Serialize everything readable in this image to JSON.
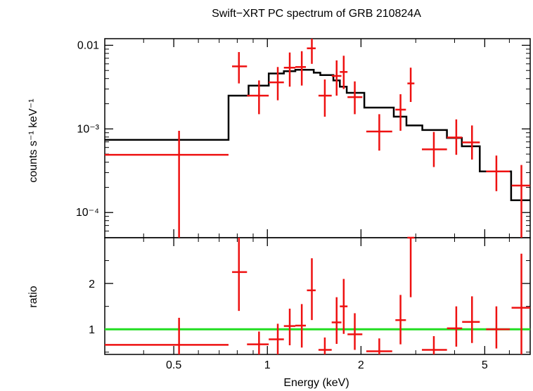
{
  "title": "Swift−XRT PC spectrum of GRB 210824A",
  "chart_data": [
    {
      "type": "scatter",
      "panel": "spectrum",
      "ylabel": "counts s⁻¹ keV⁻¹",
      "xscale": "log",
      "yscale": "log",
      "xlim": [
        0.3,
        7.0
      ],
      "ylim": [
        5e-05,
        0.012
      ],
      "yticks": [
        {
          "value": 0.01,
          "label": "0.01"
        },
        {
          "value": 0.001,
          "label": "10⁻³"
        },
        {
          "value": 0.0001,
          "label": "10⁻⁴"
        }
      ],
      "series": [
        {
          "role": "data",
          "color": "#ee1111",
          "points": [
            {
              "x": 0.52,
              "xlo": 0.3,
              "xhi": 0.75,
              "y": 0.00049,
              "ylo": 5e-05,
              "yhi": 0.00095
            },
            {
              "x": 0.81,
              "xlo": 0.77,
              "xhi": 0.86,
              "y": 0.0056,
              "ylo": 0.0035,
              "yhi": 0.0083
            },
            {
              "x": 0.94,
              "xlo": 0.86,
              "xhi": 1.01,
              "y": 0.0025,
              "ylo": 0.0015,
              "yhi": 0.0038
            },
            {
              "x": 1.08,
              "xlo": 1.01,
              "xhi": 1.13,
              "y": 0.0036,
              "ylo": 0.0022,
              "yhi": 0.0055
            },
            {
              "x": 1.18,
              "xlo": 1.13,
              "xhi": 1.23,
              "y": 0.0054,
              "ylo": 0.0032,
              "yhi": 0.0082
            },
            {
              "x": 1.29,
              "xlo": 1.23,
              "xhi": 1.33,
              "y": 0.0055,
              "ylo": 0.0033,
              "yhi": 0.0085
            },
            {
              "x": 1.39,
              "xlo": 1.34,
              "xhi": 1.43,
              "y": 0.0092,
              "ylo": 0.006,
              "yhi": 0.014
            },
            {
              "x": 1.53,
              "xlo": 1.46,
              "xhi": 1.61,
              "y": 0.0025,
              "ylo": 0.0014,
              "yhi": 0.0039
            },
            {
              "x": 1.67,
              "xlo": 1.61,
              "xhi": 1.73,
              "y": 0.0043,
              "ylo": 0.0025,
              "yhi": 0.0066
            },
            {
              "x": 1.76,
              "xlo": 1.71,
              "xhi": 1.81,
              "y": 0.0048,
              "ylo": 0.003,
              "yhi": 0.0075
            },
            {
              "x": 1.91,
              "xlo": 1.81,
              "xhi": 2.02,
              "y": 0.0024,
              "ylo": 0.0015,
              "yhi": 0.0037
            },
            {
              "x": 2.29,
              "xlo": 2.08,
              "xhi": 2.52,
              "y": 0.00093,
              "ylo": 0.00055,
              "yhi": 0.0015
            },
            {
              "x": 2.68,
              "xlo": 2.58,
              "xhi": 2.79,
              "y": 0.0017,
              "ylo": 0.00095,
              "yhi": 0.0026
            },
            {
              "x": 2.89,
              "xlo": 2.82,
              "xhi": 2.97,
              "y": 0.0035,
              "ylo": 0.0021,
              "yhi": 0.0054
            },
            {
              "x": 3.43,
              "xlo": 3.14,
              "xhi": 3.78,
              "y": 0.00057,
              "ylo": 0.00035,
              "yhi": 0.00092
            },
            {
              "x": 4.05,
              "xlo": 3.78,
              "xhi": 4.23,
              "y": 0.00079,
              "ylo": 0.00049,
              "yhi": 0.0013
            },
            {
              "x": 4.55,
              "xlo": 4.23,
              "xhi": 4.82,
              "y": 0.00069,
              "ylo": 0.00043,
              "yhi": 0.0011
            },
            {
              "x": 5.45,
              "xlo": 5.05,
              "xhi": 6.02,
              "y": 0.00031,
              "ylo": 0.00018,
              "yhi": 0.00048
            },
            {
              "x": 6.56,
              "xlo": 6.1,
              "xhi": 7.0,
              "y": 0.00021,
              "ylo": 5e-05,
              "yhi": 0.00037
            }
          ]
        },
        {
          "role": "model",
          "color": "#000000",
          "steps": [
            {
              "xlo": 0.3,
              "xhi": 0.75,
              "y": 0.00074
            },
            {
              "xlo": 0.75,
              "xhi": 0.87,
              "y": 0.0025
            },
            {
              "xlo": 0.87,
              "xhi": 1.01,
              "y": 0.0033
            },
            {
              "xlo": 1.01,
              "xhi": 1.13,
              "y": 0.0046
            },
            {
              "xlo": 1.13,
              "xhi": 1.23,
              "y": 0.0049
            },
            {
              "xlo": 1.23,
              "xhi": 1.41,
              "y": 0.0051
            },
            {
              "xlo": 1.41,
              "xhi": 1.48,
              "y": 0.0047
            },
            {
              "xlo": 1.48,
              "xhi": 1.63,
              "y": 0.0044
            },
            {
              "xlo": 1.63,
              "xhi": 1.71,
              "y": 0.0038
            },
            {
              "xlo": 1.71,
              "xhi": 1.8,
              "y": 0.0032
            },
            {
              "xlo": 1.8,
              "xhi": 2.05,
              "y": 0.0027
            },
            {
              "xlo": 2.05,
              "xhi": 2.55,
              "y": 0.0018
            },
            {
              "xlo": 2.55,
              "xhi": 2.8,
              "y": 0.0014
            },
            {
              "xlo": 2.8,
              "xhi": 3.15,
              "y": 0.0011
            },
            {
              "xlo": 3.15,
              "xhi": 3.78,
              "y": 0.00097
            },
            {
              "xlo": 3.78,
              "xhi": 4.22,
              "y": 0.00078
            },
            {
              "xlo": 4.22,
              "xhi": 4.82,
              "y": 0.00062
            },
            {
              "xlo": 4.82,
              "xhi": 6.08,
              "y": 0.00031
            },
            {
              "xlo": 6.08,
              "xhi": 7.0,
              "y": 0.00014
            }
          ]
        }
      ]
    },
    {
      "type": "scatter",
      "panel": "ratio",
      "xlabel": "Energy (keV)",
      "ylabel": "ratio",
      "xscale": "log",
      "xlim": [
        0.3,
        7.0
      ],
      "ylim": [
        0.45,
        3.0
      ],
      "xticks": [
        {
          "value": 0.5,
          "label": "0.5"
        },
        {
          "value": 1,
          "label": "1"
        },
        {
          "value": 2,
          "label": "2"
        },
        {
          "value": 5,
          "label": "5"
        }
      ],
      "yticks": [
        {
          "value": 1,
          "label": "1"
        },
        {
          "value": 2,
          "label": "2"
        }
      ],
      "reference_line": {
        "y": 1,
        "color": "#22dd22"
      },
      "series": [
        {
          "role": "data",
          "color": "#ee1111",
          "points": [
            {
              "x": 0.52,
              "xlo": 0.3,
              "xhi": 0.75,
              "y": 0.66,
              "ylo": 0.4,
              "yhi": 1.25
            },
            {
              "x": 0.81,
              "xlo": 0.77,
              "xhi": 0.86,
              "y": 2.25,
              "ylo": 1.4,
              "yhi": 3.0
            },
            {
              "x": 0.94,
              "xlo": 0.86,
              "xhi": 1.01,
              "y": 0.67,
              "ylo": 0.4,
              "yhi": 0.95
            },
            {
              "x": 1.08,
              "xlo": 1.01,
              "xhi": 1.13,
              "y": 0.78,
              "ylo": 0.45,
              "yhi": 1.12
            },
            {
              "x": 1.18,
              "xlo": 1.13,
              "xhi": 1.23,
              "y": 1.07,
              "ylo": 0.65,
              "yhi": 1.45
            },
            {
              "x": 1.29,
              "xlo": 1.23,
              "xhi": 1.33,
              "y": 1.08,
              "ylo": 0.6,
              "yhi": 1.55
            },
            {
              "x": 1.39,
              "xlo": 1.34,
              "xhi": 1.43,
              "y": 1.85,
              "ylo": 1.2,
              "yhi": 2.55
            },
            {
              "x": 1.53,
              "xlo": 1.46,
              "xhi": 1.61,
              "y": 0.55,
              "ylo": 0.33,
              "yhi": 0.82
            },
            {
              "x": 1.67,
              "xlo": 1.61,
              "xhi": 1.73,
              "y": 1.15,
              "ylo": 0.68,
              "yhi": 1.7
            },
            {
              "x": 1.76,
              "xlo": 1.71,
              "xhi": 1.81,
              "y": 1.5,
              "ylo": 0.9,
              "yhi": 2.1
            },
            {
              "x": 1.91,
              "xlo": 1.81,
              "xhi": 2.02,
              "y": 0.89,
              "ylo": 0.55,
              "yhi": 1.35
            },
            {
              "x": 2.29,
              "xlo": 2.08,
              "xhi": 2.52,
              "y": 0.52,
              "ylo": 0.3,
              "yhi": 0.8
            },
            {
              "x": 2.68,
              "xlo": 2.58,
              "xhi": 2.79,
              "y": 1.2,
              "ylo": 0.67,
              "yhi": 1.75
            },
            {
              "x": 2.89,
              "xlo": 2.82,
              "xhi": 2.97,
              "y": 3.0,
              "ylo": 1.7,
              "yhi": 3.0
            },
            {
              "x": 3.43,
              "xlo": 3.14,
              "xhi": 3.78,
              "y": 0.55,
              "ylo": 0.33,
              "yhi": 0.85
            },
            {
              "x": 4.05,
              "xlo": 3.78,
              "xhi": 4.23,
              "y": 1.02,
              "ylo": 0.62,
              "yhi": 1.5
            },
            {
              "x": 4.55,
              "xlo": 4.23,
              "xhi": 4.82,
              "y": 1.16,
              "ylo": 0.7,
              "yhi": 1.72
            },
            {
              "x": 5.45,
              "xlo": 5.05,
              "xhi": 6.02,
              "y": 1.0,
              "ylo": 0.58,
              "yhi": 1.5
            },
            {
              "x": 6.56,
              "xlo": 6.1,
              "xhi": 7.0,
              "y": 1.47,
              "ylo": 0.4,
              "yhi": 2.65
            }
          ]
        }
      ]
    }
  ]
}
